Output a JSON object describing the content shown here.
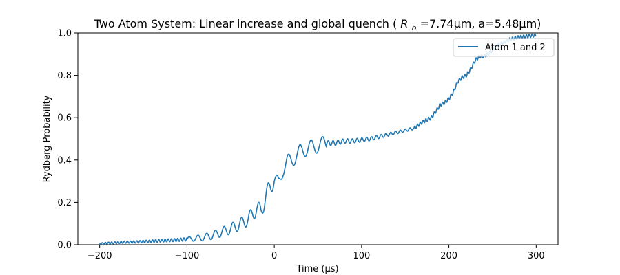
{
  "chart_data": {
    "type": "line",
    "title_main": "Two Atom System: Linear increase and global quench (",
    "title_rb_symbol": "R",
    "title_rb_sub": "b",
    "title_tail": "=7.74μm, a=5.48μm)",
    "xlabel": "Time (μs)",
    "ylabel": "Rydberg Probability",
    "xlim": [
      -225,
      325
    ],
    "ylim": [
      0.0,
      1.0
    ],
    "x_ticks": [
      -200,
      -100,
      0,
      100,
      200,
      300
    ],
    "x_tick_labels": [
      "−200",
      "−100",
      "0",
      "100",
      "200",
      "300"
    ],
    "y_ticks": [
      0.0,
      0.2,
      0.4,
      0.6,
      0.8,
      1.0
    ],
    "y_tick_labels": [
      "0.0",
      "0.2",
      "0.4",
      "0.6",
      "0.8",
      "1.0"
    ],
    "grid": false,
    "legend_position": "top-right",
    "series": [
      {
        "name": "Atom 1 and 2",
        "color": "#1f77b4",
        "x": [
          -200,
          -190,
          -180,
          -170,
          -160,
          -150,
          -140,
          -130,
          -120,
          -110,
          -100,
          -90,
          -80,
          -70,
          -60,
          -50,
          -40,
          -30,
          -20,
          -15,
          -10,
          -5,
          0,
          5,
          10,
          15,
          20,
          25,
          30,
          35,
          40,
          45,
          50,
          60,
          70,
          80,
          90,
          100,
          110,
          120,
          130,
          140,
          150,
          160,
          170,
          175,
          180,
          185,
          190,
          195,
          200,
          205,
          210,
          215,
          220,
          225,
          230,
          235,
          240,
          245,
          250,
          255,
          260,
          265,
          270,
          280,
          290,
          300
        ],
        "y": [
          0.005,
          0.008,
          0.01,
          0.012,
          0.013,
          0.015,
          0.017,
          0.019,
          0.021,
          0.023,
          0.026,
          0.03,
          0.035,
          0.045,
          0.06,
          0.075,
          0.095,
          0.12,
          0.17,
          0.16,
          0.22,
          0.28,
          0.3,
          0.29,
          0.36,
          0.39,
          0.4,
          0.42,
          0.44,
          0.45,
          0.46,
          0.46,
          0.47,
          0.48,
          0.48,
          0.49,
          0.49,
          0.495,
          0.5,
          0.51,
          0.52,
          0.53,
          0.54,
          0.55,
          0.58,
          0.59,
          0.6,
          0.63,
          0.66,
          0.67,
          0.69,
          0.72,
          0.77,
          0.79,
          0.8,
          0.83,
          0.87,
          0.89,
          0.89,
          0.9,
          0.92,
          0.94,
          0.95,
          0.96,
          0.97,
          0.98,
          0.985,
          0.99
        ]
      }
    ]
  }
}
